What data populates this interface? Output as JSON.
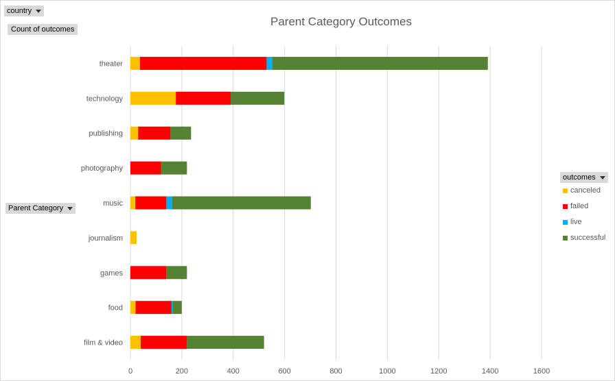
{
  "filters": {
    "country_label": "country",
    "values_label": "Count of outcomes",
    "row_label": "Parent Category",
    "legend_title": "outcomes"
  },
  "colors": {
    "canceled": "#FFC000",
    "failed": "#FF0000",
    "live": "#00B0F0",
    "successful": "#548235",
    "gridline": "#d9d9d9",
    "text": "#595959"
  },
  "icons": {
    "dropdown": "chevron-down-icon"
  },
  "chart_data": {
    "type": "bar",
    "orientation": "horizontal",
    "stacked": true,
    "title": "Parent Category Outcomes",
    "xlabel": "",
    "ylabel": "",
    "xlim": [
      0,
      1600
    ],
    "xticks": [
      0,
      200,
      400,
      600,
      800,
      1000,
      1200,
      1400,
      1600
    ],
    "grid": "vertical",
    "legend_position": "right",
    "categories": [
      "theater",
      "technology",
      "publishing",
      "photography",
      "music",
      "journalism",
      "games",
      "food",
      "film & video"
    ],
    "series": [
      {
        "name": "canceled",
        "values": [
          37,
          177,
          30,
          0,
          19,
          24,
          0,
          20,
          40
        ]
      },
      {
        "name": "failed",
        "values": [
          493,
          213,
          126,
          119,
          121,
          0,
          140,
          140,
          180
        ]
      },
      {
        "name": "live",
        "values": [
          22,
          0,
          0,
          0,
          22,
          0,
          0,
          4,
          0
        ]
      },
      {
        "name": "successful",
        "values": [
          839,
          209,
          80,
          101,
          540,
          0,
          80,
          36,
          300
        ]
      }
    ]
  }
}
